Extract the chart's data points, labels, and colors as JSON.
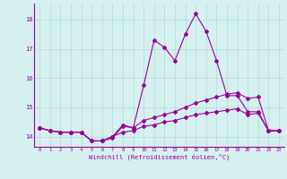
{
  "x": [
    0,
    1,
    2,
    3,
    4,
    5,
    6,
    7,
    8,
    9,
    10,
    11,
    12,
    13,
    14,
    15,
    16,
    17,
    18,
    19,
    20,
    21,
    22,
    23
  ],
  "line1": [
    14.3,
    14.2,
    14.15,
    14.15,
    14.15,
    13.85,
    13.85,
    14.0,
    14.4,
    14.3,
    15.75,
    17.3,
    17.05,
    16.6,
    17.5,
    18.2,
    17.6,
    16.6,
    15.4,
    15.4,
    14.85,
    14.85,
    14.2,
    14.2
  ],
  "line2": [
    14.3,
    14.2,
    14.15,
    14.15,
    14.15,
    13.85,
    13.85,
    13.95,
    14.35,
    14.3,
    14.55,
    14.65,
    14.75,
    14.85,
    15.0,
    15.15,
    15.25,
    15.35,
    15.45,
    15.5,
    15.3,
    15.35,
    14.2,
    14.2
  ],
  "line3": [
    14.3,
    14.2,
    14.15,
    14.15,
    14.15,
    13.85,
    13.85,
    14.0,
    14.15,
    14.2,
    14.35,
    14.4,
    14.5,
    14.55,
    14.65,
    14.75,
    14.8,
    14.85,
    14.9,
    14.95,
    14.75,
    14.8,
    14.2,
    14.2
  ],
  "color": "#990099",
  "bg_color": "#d6f0f0",
  "grid_color": "#aadddd",
  "xlabel": "Windchill (Refroidissement éolien,°C)",
  "xlim": [
    -0.5,
    23.5
  ],
  "ylim": [
    13.65,
    18.55
  ],
  "yticks": [
    14,
    15,
    16,
    17,
    18
  ],
  "xticks": [
    0,
    1,
    2,
    3,
    4,
    5,
    6,
    7,
    8,
    9,
    10,
    11,
    12,
    13,
    14,
    15,
    16,
    17,
    18,
    19,
    20,
    21,
    22,
    23
  ],
  "marker": "D",
  "markersize": 2.0,
  "linewidth": 0.8
}
